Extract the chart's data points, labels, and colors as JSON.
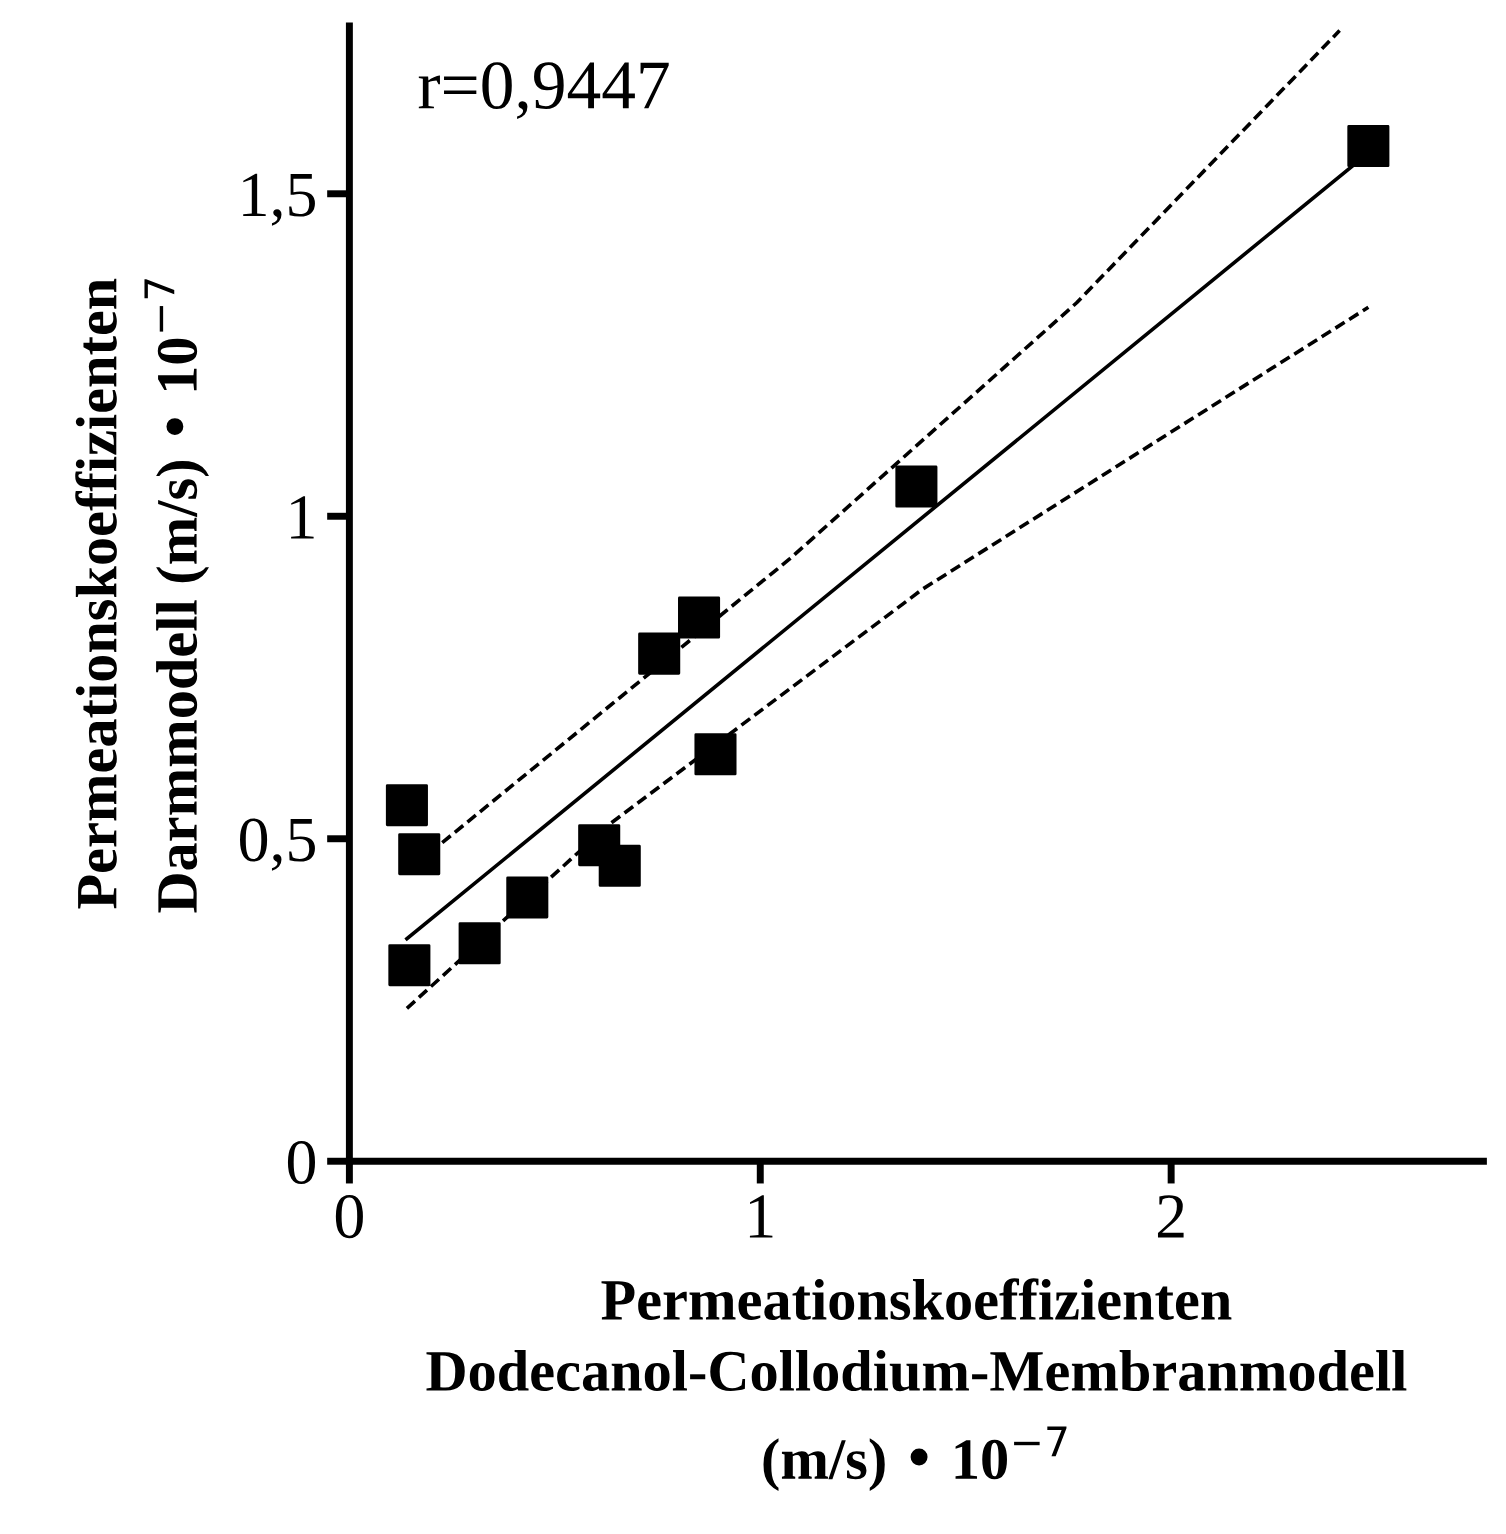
{
  "chart_data": {
    "type": "scatter",
    "xlabel": "Permeationskoeffizienten\nDodecanol-Collodium-Membranmodell\n(m/s) • 10$^{−7}$",
    "ylabel": "Permeationskoeffizienten\nDarmmodell (m/s) • 10$^{−7}$",
    "annotations": [
      "r=0,9447"
    ],
    "xlim": [
      0,
      2.76
    ],
    "ylim": [
      0,
      1.76
    ],
    "xticks": [
      0,
      1,
      2
    ],
    "yticks": [
      0,
      {
        "value": 0.5,
        "label": "0,5"
      },
      1,
      {
        "value": 1.5,
        "label": "1,5"
      }
    ],
    "grid": false,
    "legend": false,
    "series": [
      {
        "color": "#000000",
        "marker": "square",
        "x": [
          0.14,
          0.17,
          0.146,
          0.317,
          0.433,
          0.608,
          0.658,
          0.754,
          0.851,
          0.891,
          1.38,
          2.48
        ],
        "values": [
          0.552,
          0.476,
          0.304,
          0.338,
          0.409,
          0.49,
          0.458,
          0.787,
          0.843,
          0.631,
          1.046,
          1.574
        ]
      },
      {
        "type": "line",
        "color": "#000000",
        "line_style": "solid",
        "marker": "none",
        "x": [
          0.14,
          2.445
        ],
        "values": [
          0.345,
          1.545
        ]
      },
      {
        "type": "line",
        "color": "#000000",
        "line_style": "dashed",
        "marker": "none",
        "x": [
          0.226,
          1.07,
          1.77,
          2.41
        ],
        "values": [
          0.494,
          0.933,
          1.331,
          1.753
        ]
      },
      {
        "type": "line",
        "color": "#000000",
        "line_style": "dashed",
        "marker": "none",
        "x": [
          0.14,
          0.63,
          1.395,
          2.48
        ],
        "values": [
          0.237,
          0.521,
          0.887,
          1.324
        ]
      }
    ]
  }
}
